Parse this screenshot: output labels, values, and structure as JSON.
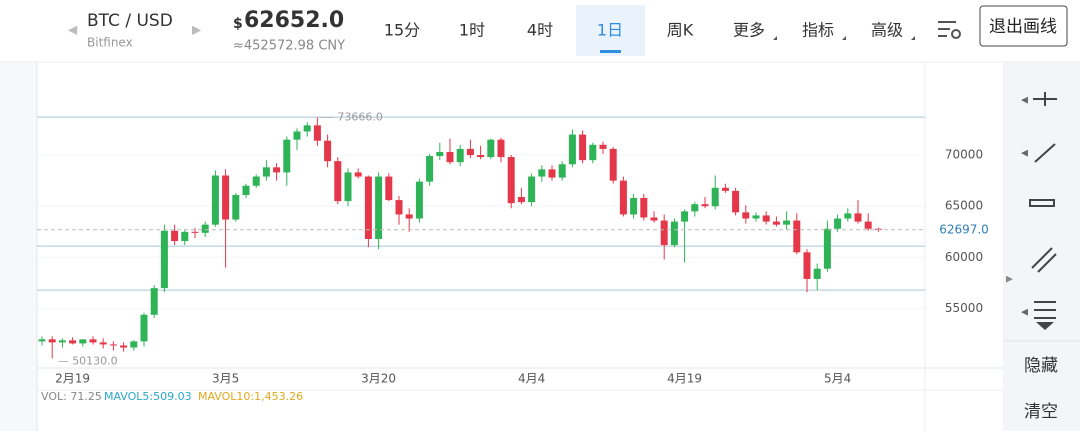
{
  "header": {
    "pair": "BTC / USD",
    "exchange": "Bitfinex",
    "currency_symbol": "$",
    "price": "62652.0",
    "cny": "≈452572.98 CNY"
  },
  "toolbar": {
    "tabs": [
      "15分",
      "1时",
      "4时",
      "1日",
      "周K",
      "更多",
      "指标",
      "高级"
    ],
    "selected_index": 3,
    "dropdown_from": 5,
    "exit_button": "退出画线"
  },
  "sidebar": {
    "hide": "隐藏",
    "clear": "清空"
  },
  "volume": {
    "vol": "VOL: 71.25",
    "mavol5": "MAVOL5:509.03",
    "mavol10": "MAVOL10:1,453.26"
  },
  "chart_data": {
    "type": "candlestick",
    "categories": [
      null,
      null,
      null,
      "2月19",
      null,
      null,
      null,
      null,
      null,
      null,
      null,
      null,
      null,
      null,
      null,
      null,
      null,
      null,
      "3月5",
      null,
      null,
      null,
      null,
      null,
      null,
      null,
      null,
      null,
      null,
      null,
      null,
      null,
      null,
      "3月20",
      null,
      null,
      null,
      null,
      null,
      null,
      null,
      null,
      null,
      null,
      null,
      null,
      null,
      null,
      "4月4",
      null,
      null,
      null,
      null,
      null,
      null,
      null,
      null,
      null,
      null,
      null,
      null,
      null,
      null,
      "4月19",
      null,
      null,
      null,
      null,
      null,
      null,
      null,
      null,
      null,
      null,
      null,
      null,
      null,
      null,
      "5月4",
      null,
      null,
      null,
      null
    ],
    "open": [
      51800,
      52000,
      51700,
      51900,
      51600,
      52000,
      51700,
      51500,
      51400,
      51200,
      51800,
      54400,
      57000,
      62600,
      61600,
      62500,
      62400,
      63200,
      68000,
      63700,
      66100,
      67000,
      67900,
      68800,
      68300,
      71500,
      72300,
      72900,
      71400,
      69400,
      65500,
      68300,
      67900,
      61800,
      67900,
      65600,
      64200,
      63800,
      67400,
      69900,
      70300,
      69300,
      70600,
      70000,
      69800,
      71500,
      69800,
      65900,
      65400,
      67900,
      68600,
      67800,
      69100,
      72000,
      69500,
      71000,
      70600,
      67500,
      64200,
      65800,
      63900,
      63600,
      61200,
      63500,
      64500,
      65200,
      65000,
      66800,
      66500,
      64400,
      63800,
      64100,
      63500,
      63200,
      63600,
      60500,
      57900,
      58900,
      62800,
      63800,
      64300,
      63500,
      62800
    ],
    "high": [
      52300,
      52300,
      52100,
      52200,
      52000,
      52300,
      52100,
      51800,
      51700,
      51900,
      54600,
      57300,
      63200,
      63200,
      62700,
      62900,
      63500,
      68500,
      68600,
      66300,
      67200,
      68100,
      69500,
      69200,
      71800,
      72600,
      73200,
      73666,
      72000,
      69800,
      68700,
      68700,
      68000,
      68300,
      68200,
      66000,
      64800,
      67700,
      70100,
      71200,
      71600,
      71000,
      71500,
      70900,
      71600,
      71700,
      70000,
      66800,
      68200,
      69000,
      69000,
      69400,
      72500,
      72400,
      71200,
      71300,
      70800,
      67900,
      66200,
      66200,
      64500,
      64200,
      63800,
      64700,
      65400,
      65900,
      68000,
      67200,
      66800,
      65100,
      64400,
      64500,
      64000,
      64500,
      64300,
      60800,
      59400,
      63600,
      64200,
      64800,
      65600,
      64300,
      62900
    ],
    "low": [
      51400,
      50130,
      51200,
      51500,
      51300,
      51500,
      51100,
      50900,
      50800,
      50900,
      51300,
      54100,
      56600,
      61200,
      61200,
      61900,
      62000,
      63000,
      59000,
      63500,
      65800,
      66800,
      67500,
      67500,
      67000,
      70500,
      71800,
      70900,
      68800,
      65200,
      65000,
      67700,
      61000,
      60800,
      65500,
      63200,
      62500,
      63400,
      67000,
      69500,
      69100,
      68900,
      69700,
      69600,
      69600,
      69300,
      64800,
      65200,
      65000,
      67400,
      67500,
      67500,
      68800,
      69200,
      69200,
      70100,
      67200,
      64000,
      63800,
      63600,
      63400,
      59800,
      61000,
      59500,
      64000,
      64800,
      64700,
      66300,
      64100,
      63300,
      63500,
      63200,
      63000,
      62700,
      60300,
      56600,
      56800,
      58600,
      62500,
      63500,
      63300,
      62600,
      62500
    ],
    "close": [
      52000,
      51700,
      51900,
      51600,
      52000,
      51700,
      51500,
      51400,
      51200,
      51800,
      54400,
      57000,
      62600,
      61600,
      62500,
      62400,
      63200,
      68000,
      63700,
      66100,
      67000,
      67900,
      68800,
      68300,
      71500,
      72300,
      72900,
      71400,
      69400,
      65500,
      68300,
      67900,
      61800,
      67900,
      65600,
      64200,
      63800,
      67400,
      69900,
      70300,
      69300,
      70600,
      70000,
      69800,
      71500,
      69800,
      65300,
      65400,
      67900,
      68600,
      67800,
      69100,
      72000,
      69500,
      71000,
      70600,
      67500,
      64200,
      65800,
      63900,
      63600,
      61200,
      63500,
      64500,
      65200,
      65000,
      66800,
      66500,
      64400,
      63800,
      64100,
      63500,
      63200,
      63600,
      60500,
      57900,
      58900,
      62800,
      63800,
      64300,
      63500,
      62800,
      62697
    ],
    "up_color": "#2eb357",
    "down_color": "#e5374a",
    "ylim": [
      49200,
      78500
    ],
    "yticks": [
      55000,
      60000,
      65000,
      70000
    ],
    "max_label": "73666.0",
    "min_label": "50130.0",
    "last_label": "62697.0",
    "price_lines": [
      73700,
      61100,
      56800
    ],
    "price_line_color": "#a6c8da"
  }
}
